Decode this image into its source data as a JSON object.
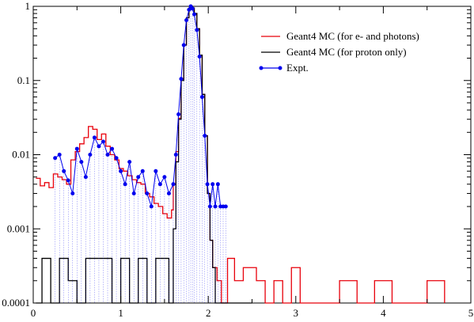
{
  "chart_data": {
    "type": "line",
    "title": "",
    "xlabel": "",
    "ylabel": "",
    "xlim": [
      0,
      5
    ],
    "ylim": [
      0.0001,
      1
    ],
    "yscale": "log",
    "grid": false,
    "legend_position": "top-right",
    "x_ticks": [
      {
        "value": 0,
        "label": "0"
      },
      {
        "value": 1,
        "label": "1"
      },
      {
        "value": 2,
        "label": "2"
      },
      {
        "value": 3,
        "label": "3"
      },
      {
        "value": 4,
        "label": "4"
      },
      {
        "value": 5,
        "label": "5"
      }
    ],
    "y_ticks": [
      {
        "value": 0.0001,
        "label": "0.0001"
      },
      {
        "value": 0.001,
        "label": "0.001"
      },
      {
        "value": 0.01,
        "label": "0.01"
      },
      {
        "value": 0.1,
        "label": "0.1"
      },
      {
        "value": 1,
        "label": "1"
      }
    ],
    "series": [
      {
        "name": "Geant4 MC (for e- and photons)",
        "color": "#e8000b",
        "style": "step",
        "x": [
          0.03,
          0.08,
          0.13,
          0.18,
          0.23,
          0.28,
          0.33,
          0.38,
          0.43,
          0.48,
          0.53,
          0.58,
          0.63,
          0.68,
          0.73,
          0.78,
          0.83,
          0.88,
          0.93,
          0.98,
          1.03,
          1.08,
          1.13,
          1.18,
          1.23,
          1.28,
          1.33,
          1.38,
          1.43,
          1.48,
          1.53,
          1.58,
          1.6,
          1.63,
          1.66,
          1.69,
          1.72,
          1.75,
          1.78,
          1.8,
          1.82,
          1.84,
          1.87,
          1.9,
          1.93,
          1.96,
          1.99,
          2.02,
          2.05,
          2.08,
          2.1,
          2.15,
          2.22,
          2.3,
          2.4,
          2.55,
          2.65,
          2.75,
          2.85,
          2.95,
          3.05,
          3.15,
          3.3,
          3.5,
          3.7,
          3.9,
          4.1,
          4.3,
          4.5,
          4.7
        ],
        "y": [
          0.0048,
          0.0038,
          0.0042,
          0.0036,
          0.0055,
          0.005,
          0.0046,
          0.004,
          0.0085,
          0.011,
          0.014,
          0.017,
          0.024,
          0.022,
          0.016,
          0.019,
          0.013,
          0.01,
          0.0085,
          0.0065,
          0.006,
          0.0052,
          0.0046,
          0.0042,
          0.004,
          0.003,
          0.0027,
          0.0022,
          0.002,
          0.0016,
          0.0014,
          0.0018,
          0.004,
          0.011,
          0.031,
          0.105,
          0.3,
          0.7,
          0.95,
          1.0,
          0.95,
          0.8,
          0.5,
          0.22,
          0.065,
          0.018,
          0.003,
          0.0007,
          0.0003,
          0.0003,
          0.0002,
          0.0001,
          0.0004,
          0.0002,
          0.0003,
          0.0002,
          0.0001,
          0.0002,
          0.0001,
          0.0003,
          0.0001,
          0.0001,
          0.0001,
          0.0002,
          0.0001,
          0.0002,
          0.0001,
          0.0001,
          0.0002,
          0.0001
        ]
      },
      {
        "name": "Geant4 MC (for proton only)",
        "color": "#000000",
        "style": "step",
        "x": [
          0.03,
          0.1,
          0.2,
          0.3,
          0.4,
          0.5,
          0.6,
          0.7,
          0.8,
          0.9,
          1.0,
          1.1,
          1.2,
          1.3,
          1.4,
          1.5,
          1.55,
          1.6,
          1.63,
          1.66,
          1.69,
          1.72,
          1.75,
          1.78,
          1.8,
          1.82,
          1.84,
          1.87,
          1.9,
          1.93,
          1.96,
          1.99,
          2.02,
          2.05,
          2.08,
          2.1,
          2.3,
          2.5
        ],
        "y": [
          0.0001,
          0.0004,
          0.0001,
          0.0004,
          0.0002,
          0.0001,
          0.0004,
          0.0004,
          0.0004,
          0.0001,
          0.0004,
          0.0001,
          0.0004,
          0.0001,
          0.0004,
          0.0004,
          0.0001,
          0.001,
          0.008,
          0.03,
          0.1,
          0.3,
          0.7,
          0.95,
          1.0,
          0.95,
          0.8,
          0.5,
          0.22,
          0.065,
          0.018,
          0.003,
          0.0007,
          0.0003,
          0.0001,
          0.0001,
          0.0001,
          0.0001
        ]
      },
      {
        "name": "Expt.",
        "color": "#0000ee",
        "style": "line-markers",
        "x": [
          0.25,
          0.3,
          0.35,
          0.4,
          0.45,
          0.5,
          0.55,
          0.6,
          0.65,
          0.7,
          0.75,
          0.8,
          0.85,
          0.9,
          0.95,
          1.0,
          1.05,
          1.1,
          1.15,
          1.2,
          1.25,
          1.3,
          1.35,
          1.4,
          1.45,
          1.5,
          1.55,
          1.6,
          1.63,
          1.66,
          1.69,
          1.72,
          1.75,
          1.78,
          1.8,
          1.82,
          1.84,
          1.87,
          1.9,
          1.93,
          1.96,
          1.99,
          2.02,
          2.05,
          2.08,
          2.11,
          2.14,
          2.17,
          2.2
        ],
        "y": [
          0.009,
          0.01,
          0.006,
          0.0045,
          0.003,
          0.012,
          0.008,
          0.005,
          0.01,
          0.017,
          0.013,
          0.015,
          0.01,
          0.012,
          0.009,
          0.006,
          0.004,
          0.008,
          0.003,
          0.005,
          0.006,
          0.003,
          0.002,
          0.006,
          0.004,
          0.005,
          0.003,
          0.004,
          0.01,
          0.035,
          0.105,
          0.3,
          0.65,
          0.9,
          1.0,
          0.93,
          0.78,
          0.48,
          0.21,
          0.06,
          0.018,
          0.004,
          0.002,
          0.004,
          0.002,
          0.004,
          0.002,
          0.002,
          0.002
        ]
      }
    ]
  }
}
